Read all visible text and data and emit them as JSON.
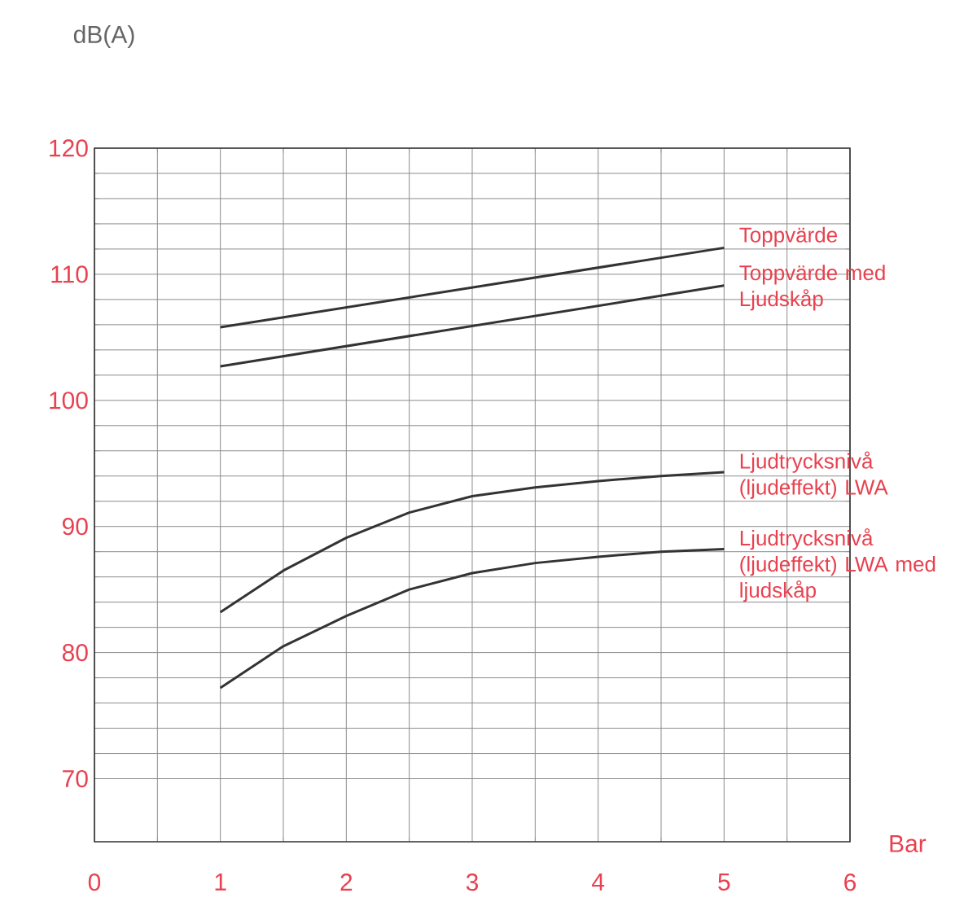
{
  "chart_data": {
    "type": "line",
    "xlabel": "Bar",
    "ylabel": "dB(A)",
    "xlim": [
      0,
      6
    ],
    "ylim": [
      65,
      120
    ],
    "xticks": [
      0,
      1,
      2,
      3,
      4,
      5,
      6
    ],
    "yticks": [
      70,
      80,
      90,
      100,
      110,
      120
    ],
    "grid": true,
    "marker": "none",
    "line_style": "solid",
    "series": [
      {
        "name": "Toppvärde",
        "color": "#333333",
        "x": [
          1,
          5
        ],
        "values": [
          105.8,
          112.1
        ]
      },
      {
        "name": "Toppvärde med Ljudskåp",
        "color": "#333333",
        "x": [
          1,
          5
        ],
        "values": [
          102.7,
          109.1
        ]
      },
      {
        "name": "Ljudtrycksnivå (ljudeffekt) LWA",
        "color": "#333333",
        "x": [
          1,
          1.5,
          2,
          2.5,
          3,
          3.5,
          4,
          4.5,
          5
        ],
        "values": [
          83.2,
          86.5,
          89.1,
          91.1,
          92.4,
          93.1,
          93.6,
          94.0,
          94.3
        ]
      },
      {
        "name": "Ljudtrycksnivå (ljudeffekt) LWA med ljudskåp",
        "color": "#333333",
        "x": [
          1,
          1.5,
          2,
          2.5,
          3,
          3.5,
          4,
          4.5,
          5
        ],
        "values": [
          77.2,
          80.5,
          82.9,
          85.0,
          86.3,
          87.1,
          87.6,
          88.0,
          88.2
        ]
      }
    ]
  }
}
